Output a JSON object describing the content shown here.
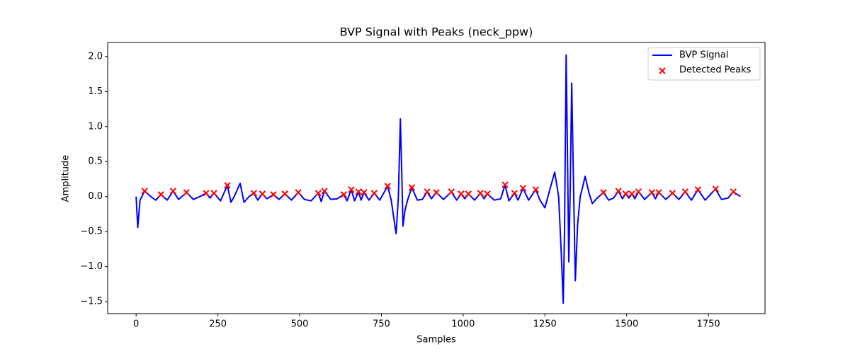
{
  "chart_data": {
    "type": "line",
    "title": "BVP Signal with Peaks (neck_ppw)",
    "x_label": "Samples",
    "y_label": "Amplitude",
    "xlim": [
      -87,
      1923
    ],
    "ylim": [
      -1.67,
      2.2
    ],
    "xticks": [
      0,
      250,
      500,
      750,
      1000,
      1250,
      1500,
      1750
    ],
    "yticks": [
      {
        "value": -1.5,
        "label": "−1.5"
      },
      {
        "value": -1.0,
        "label": "−1.0"
      },
      {
        "value": -0.5,
        "label": "−0.5"
      },
      {
        "value": 0.0,
        "label": "0.0"
      },
      {
        "value": 0.5,
        "label": "0.5"
      },
      {
        "value": 1.0,
        "label": "1.0"
      },
      {
        "value": 1.5,
        "label": "1.5"
      },
      {
        "value": 2.0,
        "label": "2.0"
      }
    ],
    "legend": "upper right",
    "series": [
      {
        "name": "BVP Signal",
        "color": "#0000ff",
        "x": [
          0,
          5,
          12,
          26,
          45,
          60,
          76,
          95,
          113,
          130,
          154,
          175,
          195,
          214,
          226,
          238,
          258,
          279,
          290,
          300,
          318,
          330,
          345,
          360,
          372,
          386,
          400,
          420,
          437,
          455,
          475,
          496,
          515,
          535,
          557,
          566,
          576,
          595,
          615,
          635,
          645,
          658,
          668,
          680,
          688,
          697,
          712,
          728,
          745,
          769,
          780,
          795,
          802,
          808,
          813,
          816,
          822,
          830,
          843,
          860,
          875,
          890,
          903,
          918,
          940,
          964,
          980,
          994,
          1005,
          1016,
          1035,
          1053,
          1064,
          1074,
          1095,
          1115,
          1128,
          1140,
          1157,
          1168,
          1183,
          1200,
          1222,
          1235,
          1250,
          1265,
          1280,
          1292,
          1300,
          1306,
          1310,
          1315,
          1319,
          1323,
          1327,
          1332,
          1337,
          1343,
          1350,
          1358,
          1366,
          1373,
          1385,
          1395,
          1410,
          1429,
          1445,
          1460,
          1475,
          1487,
          1497,
          1507,
          1516,
          1525,
          1536,
          1555,
          1577,
          1588,
          1598,
          1620,
          1640,
          1660,
          1679,
          1698,
          1718,
          1740,
          1772,
          1790,
          1810,
          1826,
          1848
        ],
        "values": [
          0,
          -0.44,
          -0.05,
          0.08,
          0.0,
          -0.05,
          0.03,
          -0.05,
          0.08,
          -0.04,
          0.06,
          -0.04,
          0.0,
          0.05,
          -0.02,
          0.05,
          -0.06,
          0.16,
          -0.08,
          0.0,
          0.19,
          -0.08,
          0.0,
          0.05,
          -0.05,
          0.04,
          -0.03,
          0.03,
          -0.04,
          0.04,
          -0.05,
          0.06,
          -0.04,
          -0.06,
          0.05,
          -0.07,
          0.08,
          -0.04,
          -0.03,
          0.03,
          -0.06,
          0.1,
          -0.06,
          0.07,
          -0.05,
          0.06,
          -0.05,
          0.05,
          -0.05,
          0.15,
          -0.05,
          -0.53,
          0.0,
          1.11,
          0.2,
          -0.42,
          -0.2,
          -0.05,
          0.13,
          -0.05,
          -0.04,
          0.07,
          -0.03,
          0.06,
          -0.04,
          0.07,
          -0.05,
          0.04,
          -0.03,
          0.04,
          -0.05,
          0.05,
          -0.03,
          0.04,
          -0.05,
          -0.03,
          0.17,
          -0.06,
          0.05,
          -0.05,
          0.12,
          -0.05,
          0.1,
          -0.05,
          -0.16,
          0.1,
          0.35,
          0.0,
          -0.8,
          -1.52,
          -0.5,
          2.02,
          0.6,
          -0.93,
          0.0,
          1.62,
          0.3,
          -1.2,
          -0.4,
          0.0,
          0.15,
          0.29,
          0.05,
          -0.1,
          -0.02,
          0.06,
          -0.05,
          -0.02,
          0.08,
          -0.03,
          0.04,
          -0.02,
          0.04,
          -0.03,
          0.07,
          -0.04,
          0.06,
          -0.03,
          0.06,
          -0.04,
          0.05,
          -0.04,
          0.07,
          -0.05,
          0.1,
          -0.05,
          0.11,
          -0.04,
          -0.02,
          0.07,
          0.0
        ]
      },
      {
        "name": "Detected Peaks",
        "color": "#ff0000",
        "marker": "x",
        "x": [
          26,
          76,
          113,
          154,
          214,
          238,
          279,
          360,
          386,
          420,
          455,
          496,
          557,
          576,
          635,
          658,
          680,
          697,
          728,
          769,
          843,
          890,
          918,
          964,
          994,
          1016,
          1053,
          1074,
          1128,
          1157,
          1183,
          1222,
          1429,
          1475,
          1497,
          1516,
          1536,
          1577,
          1598,
          1640,
          1679,
          1718,
          1772,
          1826
        ],
        "values": [
          0.08,
          0.03,
          0.08,
          0.06,
          0.05,
          0.05,
          0.16,
          0.05,
          0.04,
          0.03,
          0.04,
          0.06,
          0.05,
          0.08,
          0.03,
          0.1,
          0.07,
          0.06,
          0.05,
          0.15,
          0.13,
          0.07,
          0.06,
          0.07,
          0.04,
          0.04,
          0.05,
          0.04,
          0.17,
          0.05,
          0.12,
          0.1,
          0.06,
          0.08,
          0.04,
          0.04,
          0.07,
          0.06,
          0.06,
          0.05,
          0.07,
          0.1,
          0.11,
          0.07
        ]
      }
    ]
  }
}
